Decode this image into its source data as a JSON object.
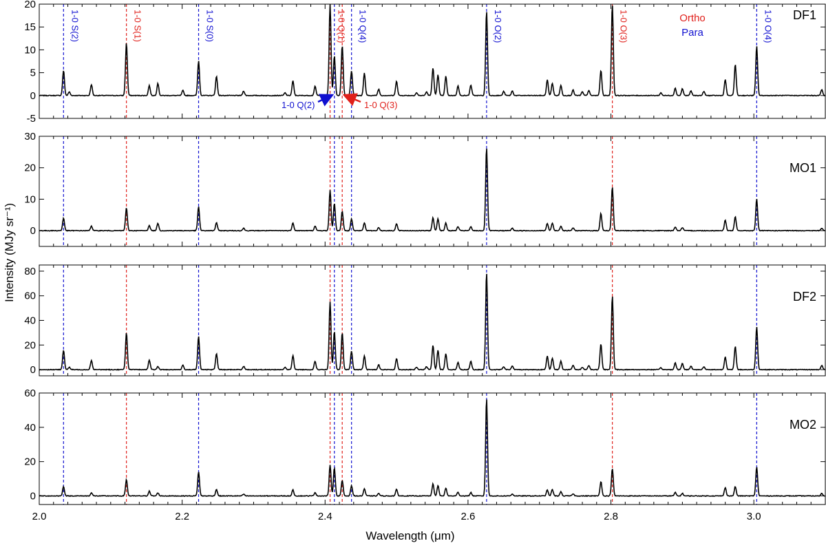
{
  "chart_data": {
    "type": "line",
    "xlabel": "Wavelength (μm)",
    "ylabel": "Intensity (MJy sr⁻¹)",
    "xlim": [
      2.0,
      3.1
    ],
    "x_ticks": [
      "2.0",
      "2.2",
      "2.4",
      "2.6",
      "2.8",
      "3.0"
    ],
    "legend": [
      {
        "label": "Ortho",
        "color": "#e0201b"
      },
      {
        "label": "Para",
        "color": "#1010d0"
      }
    ],
    "legend_placement": "top-right",
    "reference_lines": [
      {
        "x": 2.034,
        "label": "1-0 S(2)",
        "type": "para"
      },
      {
        "x": 2.122,
        "label": "1-0 S(1)",
        "type": "ortho"
      },
      {
        "x": 2.223,
        "label": "1-0 S(0)",
        "type": "para"
      },
      {
        "x": 2.407,
        "label": "1-0 Q(1)",
        "type": "ortho"
      },
      {
        "x": 2.413,
        "label": "1-0 Q(2)",
        "type": "para",
        "annotation": "arrow"
      },
      {
        "x": 2.424,
        "label": "1-0 Q(3)",
        "type": "ortho",
        "annotation": "arrow"
      },
      {
        "x": 2.437,
        "label": "1-0 Q(4)",
        "type": "para"
      },
      {
        "x": 2.626,
        "label": "1-0 O(2)",
        "type": "para"
      },
      {
        "x": 2.802,
        "label": "1-0 O(3)",
        "type": "ortho"
      },
      {
        "x": 3.004,
        "label": "1-0 O(4)",
        "type": "para"
      }
    ],
    "panels": [
      {
        "name": "DF1",
        "ylim": [
          -5,
          20
        ],
        "y_ticks": [
          "-5",
          "0",
          "5",
          "10",
          "15",
          "20"
        ],
        "series": [
          {
            "peaks": [
              [
                2.034,
                5.5
              ],
              [
                2.042,
                0.8
              ],
              [
                2.073,
                2.4
              ],
              [
                2.122,
                11.5
              ],
              [
                2.154,
                2.2
              ],
              [
                2.166,
                2.7
              ],
              [
                2.201,
                1.1
              ],
              [
                2.223,
                7.6
              ],
              [
                2.248,
                4.2
              ],
              [
                2.286,
                1.0
              ],
              [
                2.344,
                0.6
              ],
              [
                2.355,
                3.2
              ],
              [
                2.386,
                2.0
              ],
              [
                2.407,
                20.0
              ],
              [
                2.413,
                8.7
              ],
              [
                2.424,
                11.0
              ],
              [
                2.437,
                5.4
              ],
              [
                2.455,
                4.9
              ],
              [
                2.475,
                1.4
              ],
              [
                2.5,
                3.2
              ],
              [
                2.528,
                0.6
              ],
              [
                2.542,
                0.8
              ],
              [
                2.551,
                6.1
              ],
              [
                2.558,
                4.5
              ],
              [
                2.569,
                4.2
              ],
              [
                2.586,
                2.1
              ],
              [
                2.604,
                2.3
              ],
              [
                2.626,
                18.5
              ],
              [
                2.65,
                0.9
              ],
              [
                2.662,
                1.0
              ],
              [
                2.711,
                3.4
              ],
              [
                2.718,
                2.7
              ],
              [
                2.73,
                2.2
              ],
              [
                2.747,
                1.2
              ],
              [
                2.76,
                0.8
              ],
              [
                2.769,
                1.1
              ],
              [
                2.786,
                5.5
              ],
              [
                2.802,
                20.0
              ],
              [
                2.87,
                0.6
              ],
              [
                2.89,
                1.6
              ],
              [
                2.9,
                1.5
              ],
              [
                2.912,
                1.0
              ],
              [
                2.93,
                0.9
              ],
              [
                2.96,
                3.5
              ],
              [
                2.974,
                6.8
              ],
              [
                3.004,
                10.8
              ],
              [
                3.095,
                1.3
              ]
            ]
          }
        ]
      },
      {
        "name": "MO1",
        "ylim": [
          -5,
          30
        ],
        "y_ticks": [
          "0",
          "10",
          "20",
          "30"
        ],
        "series": [
          {
            "peaks": [
              [
                2.034,
                4.0
              ],
              [
                2.073,
                1.5
              ],
              [
                2.122,
                7.2
              ],
              [
                2.154,
                1.7
              ],
              [
                2.166,
                2.4
              ],
              [
                2.223,
                7.6
              ],
              [
                2.248,
                2.6
              ],
              [
                2.286,
                0.8
              ],
              [
                2.355,
                2.5
              ],
              [
                2.386,
                1.4
              ],
              [
                2.407,
                12.8
              ],
              [
                2.413,
                8.8
              ],
              [
                2.424,
                6.2
              ],
              [
                2.437,
                3.8
              ],
              [
                2.455,
                2.5
              ],
              [
                2.475,
                1.0
              ],
              [
                2.5,
                2.2
              ],
              [
                2.551,
                4.1
              ],
              [
                2.558,
                3.8
              ],
              [
                2.569,
                2.4
              ],
              [
                2.586,
                1.3
              ],
              [
                2.604,
                1.2
              ],
              [
                2.626,
                26.5
              ],
              [
                2.662,
                0.8
              ],
              [
                2.711,
                2.3
              ],
              [
                2.718,
                2.4
              ],
              [
                2.73,
                1.5
              ],
              [
                2.747,
                0.9
              ],
              [
                2.786,
                5.5
              ],
              [
                2.802,
                14.0
              ],
              [
                2.89,
                1.2
              ],
              [
                2.9,
                1.0
              ],
              [
                2.96,
                3.4
              ],
              [
                2.974,
                4.4
              ],
              [
                3.004,
                10.1
              ],
              [
                3.095,
                0.8
              ]
            ]
          }
        ]
      },
      {
        "name": "DF2",
        "ylim": [
          -5,
          85
        ],
        "y_ticks": [
          "0",
          "20",
          "40",
          "60",
          "80"
        ],
        "series": [
          {
            "peaks": [
              [
                2.034,
                16.0
              ],
              [
                2.042,
                2.0
              ],
              [
                2.073,
                7.5
              ],
              [
                2.122,
                30.0
              ],
              [
                2.154,
                8.0
              ],
              [
                2.166,
                2.5
              ],
              [
                2.201,
                3.5
              ],
              [
                2.223,
                27.0
              ],
              [
                2.248,
                13.0
              ],
              [
                2.286,
                2.8
              ],
              [
                2.344,
                1.8
              ],
              [
                2.355,
                11.5
              ],
              [
                2.386,
                6.8
              ],
              [
                2.407,
                55.0
              ],
              [
                2.413,
                31.0
              ],
              [
                2.424,
                30.0
              ],
              [
                2.437,
                15.0
              ],
              [
                2.455,
                11.0
              ],
              [
                2.475,
                4.0
              ],
              [
                2.5,
                9.0
              ],
              [
                2.528,
                2.0
              ],
              [
                2.542,
                2.5
              ],
              [
                2.551,
                20.0
              ],
              [
                2.558,
                16.0
              ],
              [
                2.569,
                13.0
              ],
              [
                2.586,
                6.0
              ],
              [
                2.604,
                7.0
              ],
              [
                2.626,
                79.0
              ],
              [
                2.65,
                2.5
              ],
              [
                2.662,
                3.0
              ],
              [
                2.711,
                11.0
              ],
              [
                2.718,
                9.5
              ],
              [
                2.73,
                7.0
              ],
              [
                2.747,
                3.5
              ],
              [
                2.76,
                2.0
              ],
              [
                2.769,
                3.5
              ],
              [
                2.786,
                21.0
              ],
              [
                2.802,
                60.0
              ],
              [
                2.87,
                1.5
              ],
              [
                2.89,
                5.5
              ],
              [
                2.9,
                5.0
              ],
              [
                2.912,
                3.0
              ],
              [
                2.93,
                2.5
              ],
              [
                2.96,
                10.5
              ],
              [
                2.974,
                19.0
              ],
              [
                3.004,
                35.0
              ],
              [
                3.095,
                3.5
              ]
            ]
          }
        ]
      },
      {
        "name": "MO2",
        "ylim": [
          -5,
          60
        ],
        "y_ticks": [
          "0",
          "20",
          "40",
          "60"
        ],
        "series": [
          {
            "peaks": [
              [
                2.034,
                5.5
              ],
              [
                2.073,
                1.8
              ],
              [
                2.122,
                9.5
              ],
              [
                2.154,
                2.8
              ],
              [
                2.166,
                1.8
              ],
              [
                2.223,
                14.0
              ],
              [
                2.248,
                3.8
              ],
              [
                2.286,
                1.0
              ],
              [
                2.355,
                3.5
              ],
              [
                2.386,
                2.0
              ],
              [
                2.407,
                18.0
              ],
              [
                2.413,
                16.5
              ],
              [
                2.424,
                9.0
              ],
              [
                2.437,
                6.0
              ],
              [
                2.455,
                4.2
              ],
              [
                2.475,
                1.5
              ],
              [
                2.5,
                3.8
              ],
              [
                2.551,
                7.0
              ],
              [
                2.558,
                6.0
              ],
              [
                2.569,
                4.5
              ],
              [
                2.586,
                2.2
              ],
              [
                2.604,
                2.0
              ],
              [
                2.626,
                57.0
              ],
              [
                2.662,
                1.2
              ],
              [
                2.711,
                3.5
              ],
              [
                2.718,
                3.8
              ],
              [
                2.73,
                2.5
              ],
              [
                2.747,
                1.3
              ],
              [
                2.786,
                8.5
              ],
              [
                2.802,
                16.0
              ],
              [
                2.89,
                2.0
              ],
              [
                2.9,
                1.5
              ],
              [
                2.96,
                5.0
              ],
              [
                2.974,
                5.5
              ],
              [
                3.004,
                17.0
              ],
              [
                3.095,
                1.5
              ]
            ]
          }
        ]
      }
    ]
  }
}
